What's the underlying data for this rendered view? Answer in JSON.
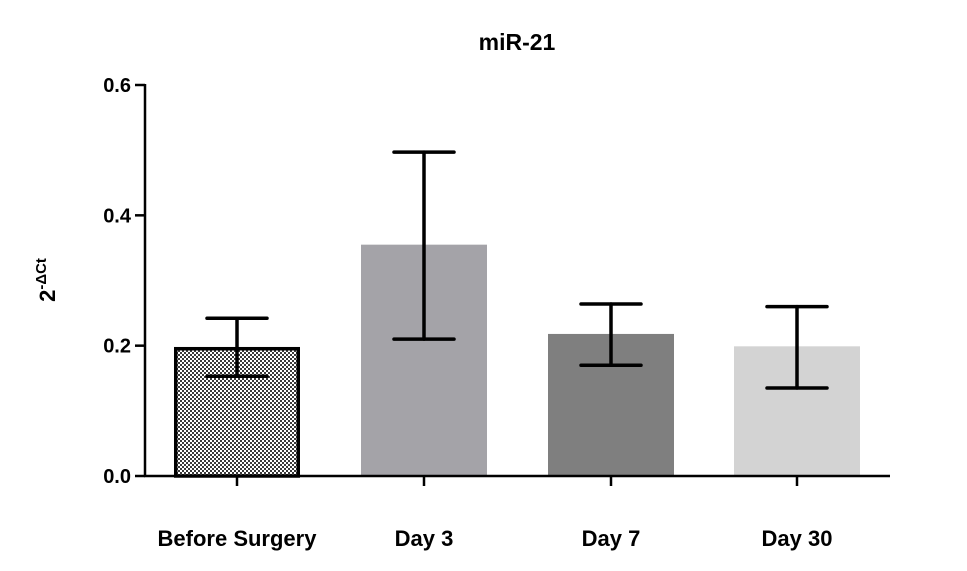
{
  "chart_data": {
    "type": "bar",
    "title": "miR-21",
    "ylabel": {
      "base": "2",
      "superscript": "-ΔCt"
    },
    "xlabel": "",
    "ylim": [
      0,
      0.6
    ],
    "yticks": [
      {
        "value": 0.0,
        "label": "0.0"
      },
      {
        "value": 0.2,
        "label": "0.2"
      },
      {
        "value": 0.4,
        "label": "0.4"
      },
      {
        "value": 0.6,
        "label": "0.6"
      }
    ],
    "categories": [
      "Before Surgery",
      "Day 3",
      "Day 7",
      "Day 30"
    ],
    "values": [
      0.198,
      0.355,
      0.218,
      0.199
    ],
    "error_low": [
      0.153,
      0.21,
      0.17,
      0.135
    ],
    "error_high": [
      0.242,
      0.497,
      0.264,
      0.26
    ],
    "colors": [
      "#e6e6e6",
      "#a4a3a8",
      "#7f7f7f",
      "#d3d3d3"
    ],
    "patterns": [
      "checker",
      "none",
      "none",
      "none"
    ],
    "grid": false,
    "legend": "none"
  }
}
